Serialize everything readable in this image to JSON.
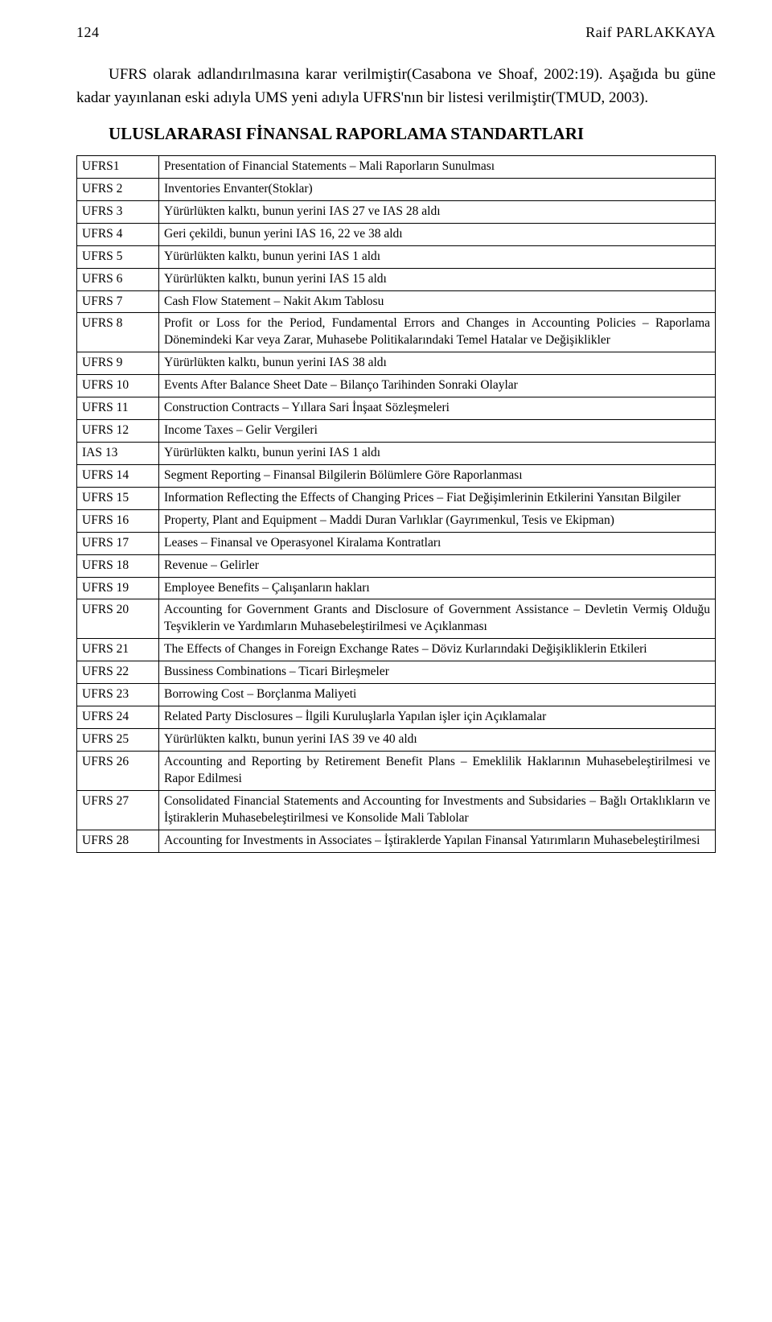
{
  "header": {
    "page_number": "124",
    "author": "Raif PARLAKKAYA"
  },
  "paragraph": "UFRS olarak adlandırılmasına karar verilmiştir(Casabona ve Shoaf, 2002:19). Aşağıda bu güne kadar yayınlanan eski adıyla UMS yeni adıyla UFRS'nın bir listesi verilmiştir(TMUD, 2003).",
  "section_title": "ULUSLARARASI FİNANSAL RAPORLAMA STANDARTLARI",
  "rows": [
    {
      "code": "UFRS1",
      "desc": "Presentation of Financial Statements – Mali Raporların Sunulması"
    },
    {
      "code": "UFRS 2",
      "desc": "Inventories Envanter(Stoklar)"
    },
    {
      "code": "UFRS 3",
      "desc": "Yürürlükten kalktı, bunun yerini IAS 27 ve IAS 28 aldı"
    },
    {
      "code": "UFRS 4",
      "desc": "Geri çekildi, bunun yerini IAS 16, 22 ve 38 aldı"
    },
    {
      "code": "UFRS 5",
      "desc": "Yürürlükten kalktı, bunun yerini IAS 1 aldı"
    },
    {
      "code": "UFRS 6",
      "desc": "Yürürlükten kalktı, bunun yerini IAS 15 aldı"
    },
    {
      "code": "UFRS 7",
      "desc": "Cash Flow Statement – Nakit Akım Tablosu"
    },
    {
      "code": "UFRS 8",
      "desc": "Profit or Loss for the Period, Fundamental Errors and Changes in Accounting Policies – Raporlama Dönemindeki Kar veya Zarar, Muhasebe Politikalarındaki Temel Hatalar ve Değişiklikler"
    },
    {
      "code": "UFRS 9",
      "desc": "Yürürlükten kalktı, bunun yerini IAS 38 aldı"
    },
    {
      "code": "UFRS 10",
      "desc": "Events After Balance Sheet Date – Bilanço Tarihinden Sonraki Olaylar"
    },
    {
      "code": "UFRS 11",
      "desc": "Construction Contracts – Yıllara Sari İnşaat Sözleşmeleri"
    },
    {
      "code": "UFRS 12",
      "desc": "Income Taxes – Gelir Vergileri"
    },
    {
      "code": "IAS 13",
      "desc": "Yürürlükten kalktı, bunun yerini IAS 1 aldı"
    },
    {
      "code": "UFRS 14",
      "desc": "Segment Reporting – Finansal Bilgilerin Bölümlere Göre Raporlanması"
    },
    {
      "code": "UFRS 15",
      "desc": "Information Reflecting the Effects of Changing Prices – Fiat Değişimlerinin Etkilerini Yansıtan Bilgiler"
    },
    {
      "code": "UFRS 16",
      "desc": "Property, Plant and Equipment – Maddi Duran Varlıklar (Gayrımenkul, Tesis ve Ekipman)"
    },
    {
      "code": "UFRS 17",
      "desc": "Leases –  Finansal ve Operasyonel Kiralama Kontratları"
    },
    {
      "code": "UFRS 18",
      "desc": "Revenue – Gelirler"
    },
    {
      "code": "UFRS 19",
      "desc": "Employee Benefits – Çalışanların hakları"
    },
    {
      "code": "UFRS 20",
      "desc": "Accounting for Government Grants and Disclosure of Government Assistance – Devletin Vermiş Olduğu Teşviklerin ve Yardımların Muhasebeleştirilmesi ve Açıklanması"
    },
    {
      "code": "UFRS 21",
      "desc": "The Effects of Changes in Foreign Exchange Rates – Döviz Kurlarındaki Değişikliklerin Etkileri"
    },
    {
      "code": "UFRS 22",
      "desc": "Bussiness Combinations – Ticari Birleşmeler"
    },
    {
      "code": "UFRS 23",
      "desc": "Borrowing Cost – Borçlanma Maliyeti"
    },
    {
      "code": "UFRS 24",
      "desc": "Related Party Disclosures – İlgili Kuruluşlarla Yapılan işler için Açıklamalar"
    },
    {
      "code": "UFRS 25",
      "desc": "Yürürlükten kalktı, bunun yerini IAS 39 ve 40 aldı"
    },
    {
      "code": "UFRS 26",
      "desc": "Accounting and Reporting by Retirement Benefit Plans – Emeklilik Haklarının Muhasebeleştirilmesi ve Rapor Edilmesi"
    },
    {
      "code": "UFRS 27",
      "desc": "Consolidated Financial Statements and Accounting for Investments and Subsidaries – Bağlı Ortaklıkların ve İştiraklerin Muhasebeleştirilmesi ve Konsolide Mali Tablolar"
    },
    {
      "code": "UFRS 28",
      "desc": "Accounting for Investments in Associates – İştiraklerde Yapılan Finansal Yatırımların Muhasebeleştirilmesi"
    }
  ]
}
